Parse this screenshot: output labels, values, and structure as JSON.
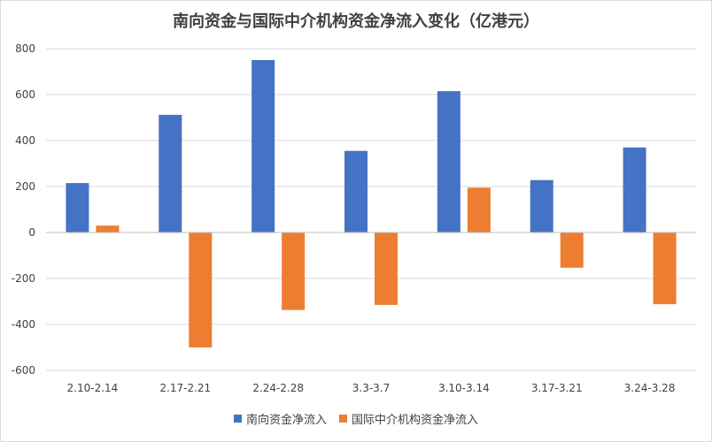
{
  "chart_data": {
    "type": "bar",
    "title": "南向资金与国际中介机构资金净流入变化（亿港元）",
    "categories": [
      "2.10-2.14",
      "2.17-2.21",
      "2.24-2.28",
      "3.3-3.7",
      "3.10-3.14",
      "3.17-3.21",
      "3.24-3.28"
    ],
    "series": [
      {
        "name": "南向资金净流入",
        "color": "#4472C4",
        "values": [
          215,
          512,
          750,
          355,
          615,
          228,
          370
        ]
      },
      {
        "name": "国际中介机构资金净流入",
        "color": "#ED7D31",
        "values": [
          30,
          -500,
          -337,
          -315,
          195,
          -153,
          -312
        ]
      }
    ],
    "ylim": [
      -600,
      800
    ],
    "yticks": [
      800,
      600,
      400,
      200,
      0,
      -200,
      -400,
      -600
    ],
    "xlabel": "",
    "ylabel": "",
    "grid": true,
    "legend": "bottom"
  }
}
